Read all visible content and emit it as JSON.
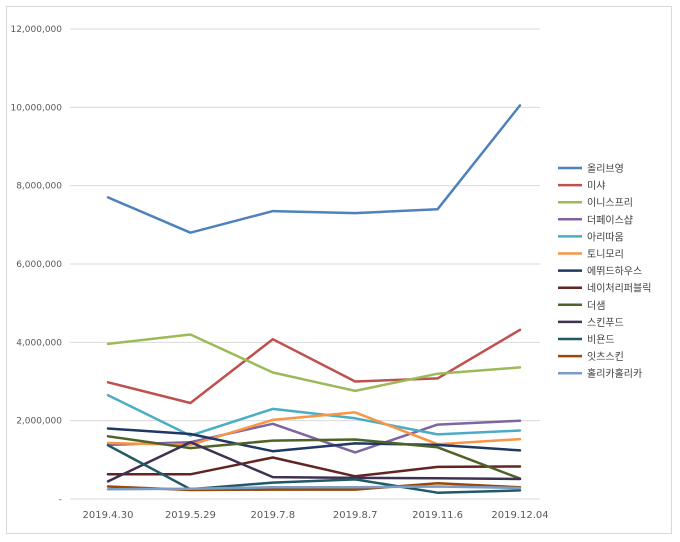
{
  "chart_data": {
    "type": "line",
    "title": "",
    "xlabel": "",
    "ylabel": "",
    "categories": [
      "2019.4.30",
      "2019.5.29",
      "2019.7.8",
      "2019.8.7",
      "2019.11.6",
      "2019.12.04"
    ],
    "ylim": [
      0,
      12000000
    ],
    "yticks": [
      0,
      2000000,
      4000000,
      6000000,
      8000000,
      10000000,
      12000000
    ],
    "ytick_labels": [
      "-",
      "2,000,000",
      "4,000,000",
      "6,000,000",
      "8,000,000",
      "10,000,000",
      "12,000,000"
    ],
    "grid": "horizontal",
    "legend_position": "right",
    "series": [
      {
        "name": "올리브영",
        "color": "#4f81bd",
        "values": [
          7700000,
          6800000,
          7350000,
          7300000,
          7400000,
          10050000
        ]
      },
      {
        "name": "미샤",
        "color": "#c0504d",
        "values": [
          2980000,
          2450000,
          4080000,
          3000000,
          3080000,
          4320000
        ]
      },
      {
        "name": "이니스프리",
        "color": "#9bbb59",
        "values": [
          3960000,
          4200000,
          3230000,
          2760000,
          3200000,
          3360000
        ]
      },
      {
        "name": "더페이스샵",
        "color": "#8064a2",
        "values": [
          1380000,
          1450000,
          1920000,
          1190000,
          1900000,
          2000000
        ]
      },
      {
        "name": "아리따움",
        "color": "#4bacc6",
        "values": [
          2650000,
          1620000,
          2300000,
          2060000,
          1650000,
          1750000
        ]
      },
      {
        "name": "토니모리",
        "color": "#f79646",
        "values": [
          1430000,
          1380000,
          2020000,
          2210000,
          1400000,
          1530000
        ]
      },
      {
        "name": "에뛰드하우스",
        "color": "#1f3864",
        "values": [
          1800000,
          1660000,
          1220000,
          1420000,
          1380000,
          1240000
        ]
      },
      {
        "name": "네이처리퍼블릭",
        "color": "#632523",
        "values": [
          630000,
          630000,
          1060000,
          580000,
          820000,
          830000
        ]
      },
      {
        "name": "더샘",
        "color": "#4f6228",
        "values": [
          1600000,
          1300000,
          1490000,
          1520000,
          1320000,
          520000
        ]
      },
      {
        "name": "스킨푸드",
        "color": "#3f3151",
        "values": [
          450000,
          1450000,
          560000,
          540000,
          530000,
          510000
        ]
      },
      {
        "name": "비욘드",
        "color": "#215967",
        "values": [
          1370000,
          250000,
          420000,
          500000,
          160000,
          220000
        ]
      },
      {
        "name": "잇츠스킨",
        "color": "#984807",
        "values": [
          320000,
          230000,
          240000,
          240000,
          400000,
          300000
        ]
      },
      {
        "name": "홀리카홀리카",
        "color": "#7a9cc6",
        "values": [
          250000,
          260000,
          300000,
          300000,
          320000,
          280000
        ]
      }
    ]
  }
}
